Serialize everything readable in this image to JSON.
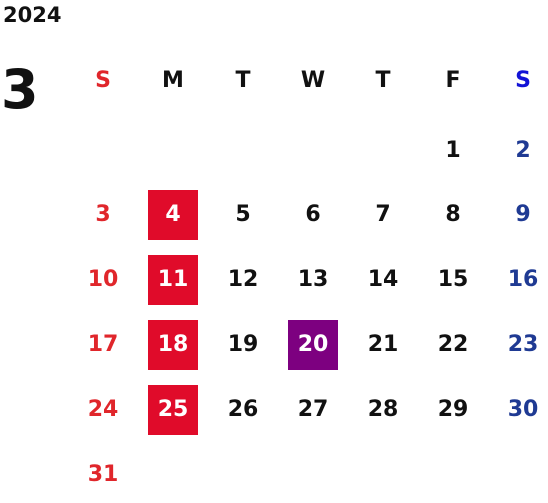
{
  "year": "2024",
  "month": "3",
  "weekdays": [
    {
      "label": "S",
      "kind": "sun"
    },
    {
      "label": "M",
      "kind": "wd"
    },
    {
      "label": "T",
      "kind": "wd"
    },
    {
      "label": "W",
      "kind": "wd"
    },
    {
      "label": "T",
      "kind": "wd"
    },
    {
      "label": "F",
      "kind": "wd"
    },
    {
      "label": "S",
      "kind": "sat"
    }
  ],
  "first_weekday_index": 5,
  "days_in_month": 31,
  "highlighted_days": [
    4,
    11,
    18,
    25
  ],
  "selected_day": 20,
  "colors": {
    "sunday": "#e0262b",
    "saturday_header": "#1313d6",
    "saturday": "#1f3a93",
    "weekday": "#111111",
    "highlight_bg": "#e00b2a",
    "selected_bg": "#7d0080",
    "highlight_text": "#ffffff"
  }
}
